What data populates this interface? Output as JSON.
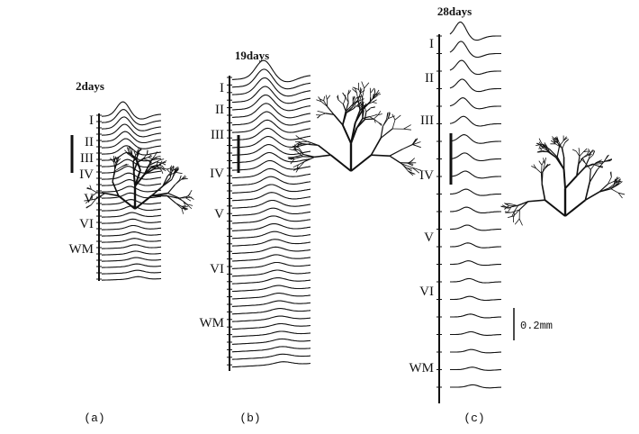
{
  "panels": [
    {
      "title": "2days",
      "label": "(a)",
      "layers": [
        "I",
        "II",
        "III",
        "IV",
        "V",
        "VI",
        "WM"
      ]
    },
    {
      "title": "19days",
      "label": "(b)",
      "layers": [
        "I",
        "II",
        "III",
        "IV",
        "V",
        "VI",
        "WM"
      ]
    },
    {
      "title": "28days",
      "label": "(c)",
      "layers": [
        "I",
        "II",
        "III",
        "IV",
        "V",
        "VI",
        "WM"
      ]
    }
  ],
  "scale_bar": {
    "label": "0.2mm"
  }
}
